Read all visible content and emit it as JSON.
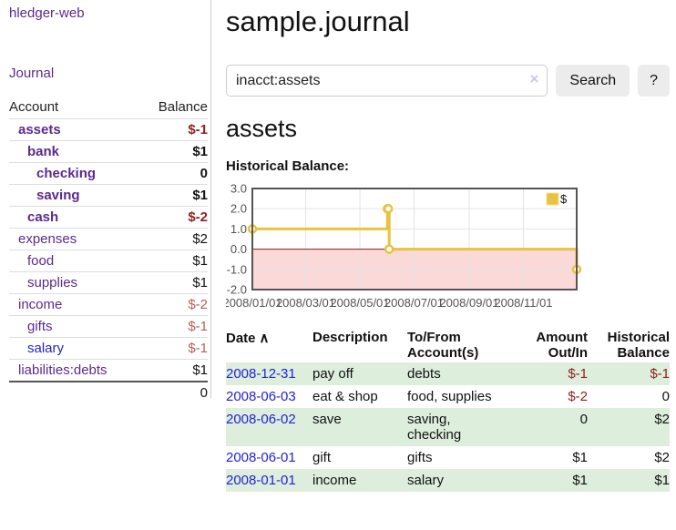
{
  "colors": {
    "brand_purple": "#5b2a8e",
    "link_blue": "#2323d3",
    "negative_strong": "#8f1f1f",
    "negative_faded": "#b85e5e",
    "row_green": "#ddeedd",
    "chart_line": "#e8c240",
    "chart_marker_fill": "#ffffff",
    "negative_region": "#fbd9d9",
    "zero_line": "#941414",
    "grid": "#e3e3e3",
    "axis": "#545454"
  },
  "sidebar": {
    "brand": "hledger-web",
    "journal_link": "Journal",
    "accounts_table": {
      "headers": [
        "Account",
        "Balance"
      ],
      "rows": [
        {
          "name": "assets",
          "balance": "$-1",
          "indent": 1,
          "bold": true,
          "link": "visited",
          "balance_color": "negative"
        },
        {
          "name": "bank",
          "balance": "$1",
          "indent": 2,
          "bold": true,
          "link": "visited",
          "balance_color": "normal"
        },
        {
          "name": "checking",
          "balance": "0",
          "indent": 3,
          "bold": true,
          "link": "visited",
          "balance_color": "normal"
        },
        {
          "name": "saving",
          "balance": "$1",
          "indent": 3,
          "bold": true,
          "link": "visited",
          "balance_color": "normal"
        },
        {
          "name": "cash",
          "balance": "$-2",
          "indent": 2,
          "bold": true,
          "link": "visited",
          "balance_color": "negative"
        },
        {
          "name": "expenses",
          "balance": "$2",
          "indent": 1,
          "bold": false,
          "link": "visited",
          "balance_color": "normal"
        },
        {
          "name": "food",
          "balance": "$1",
          "indent": 2,
          "bold": false,
          "link": "visited",
          "balance_color": "normal"
        },
        {
          "name": "supplies",
          "balance": "$1",
          "indent": 2,
          "bold": false,
          "link": "visited",
          "balance_color": "normal"
        },
        {
          "name": "income",
          "balance": "$-2",
          "indent": 1,
          "bold": false,
          "link": "visited",
          "balance_color": "negative-faded"
        },
        {
          "name": "gifts",
          "balance": "$-1",
          "indent": 2,
          "bold": false,
          "link": "visited",
          "balance_color": "negative-faded"
        },
        {
          "name": "salary",
          "balance": "$-1",
          "indent": 2,
          "bold": false,
          "link": "unvisited",
          "balance_color": "negative-faded"
        },
        {
          "name": "liabilities:debts",
          "balance": "$1",
          "indent": 1,
          "bold": false,
          "link": "visited",
          "balance_color": "normal"
        }
      ],
      "total": "0"
    }
  },
  "header": {
    "title": "sample.journal"
  },
  "search": {
    "value": "inacct:assets",
    "clear_icon": "×",
    "button": "Search",
    "help_button": "?"
  },
  "account_page": {
    "heading": "assets",
    "chart_label": "Historical Balance:"
  },
  "chart_data": {
    "type": "line",
    "style": "step",
    "series_label": "$",
    "points": [
      [
        "2008/01/01",
        1
      ],
      [
        "2008/06/01",
        2
      ],
      [
        "2008/06/02",
        2
      ],
      [
        "2008/06/03",
        0
      ],
      [
        "2008/12/31",
        -1
      ]
    ],
    "xlim": [
      "2008/01/01",
      "2008/12/31"
    ],
    "ylim": [
      -2,
      3
    ],
    "yticks": [
      3,
      2,
      1,
      0,
      -1,
      -2
    ],
    "xticks": [
      "2008/01/01",
      "2008/03/01",
      "2008/05/01",
      "2008/07/01",
      "2008/09/01",
      "2008/11/01"
    ],
    "grid": true,
    "legend_position": "top-right",
    "negative_region_shaded": true
  },
  "register_table": {
    "headers": {
      "date": "Date",
      "date_sort_icon": "∧",
      "description": "Description",
      "account": "To/From Account(s)",
      "amount": "Amount Out/In",
      "balance": "Historical Balance"
    },
    "rows": [
      {
        "date": "2008-12-31",
        "description": "pay off",
        "accounts": "debts",
        "amount": "$-1",
        "amount_neg": true,
        "balance": "$-1",
        "balance_neg": true
      },
      {
        "date": "2008-06-03",
        "description": "eat & shop",
        "accounts": "food, supplies",
        "amount": "$-2",
        "amount_neg": true,
        "balance": "0",
        "balance_neg": false
      },
      {
        "date": "2008-06-02",
        "description": "save",
        "accounts": "saving, checking",
        "amount": "0",
        "amount_neg": false,
        "balance": "$2",
        "balance_neg": false
      },
      {
        "date": "2008-06-01",
        "description": "gift",
        "accounts": "gifts",
        "amount": "$1",
        "amount_neg": false,
        "balance": "$2",
        "balance_neg": false
      },
      {
        "date": "2008-01-01",
        "description": "income",
        "accounts": "salary",
        "amount": "$1",
        "amount_neg": false,
        "balance": "$1",
        "balance_neg": false
      }
    ]
  }
}
